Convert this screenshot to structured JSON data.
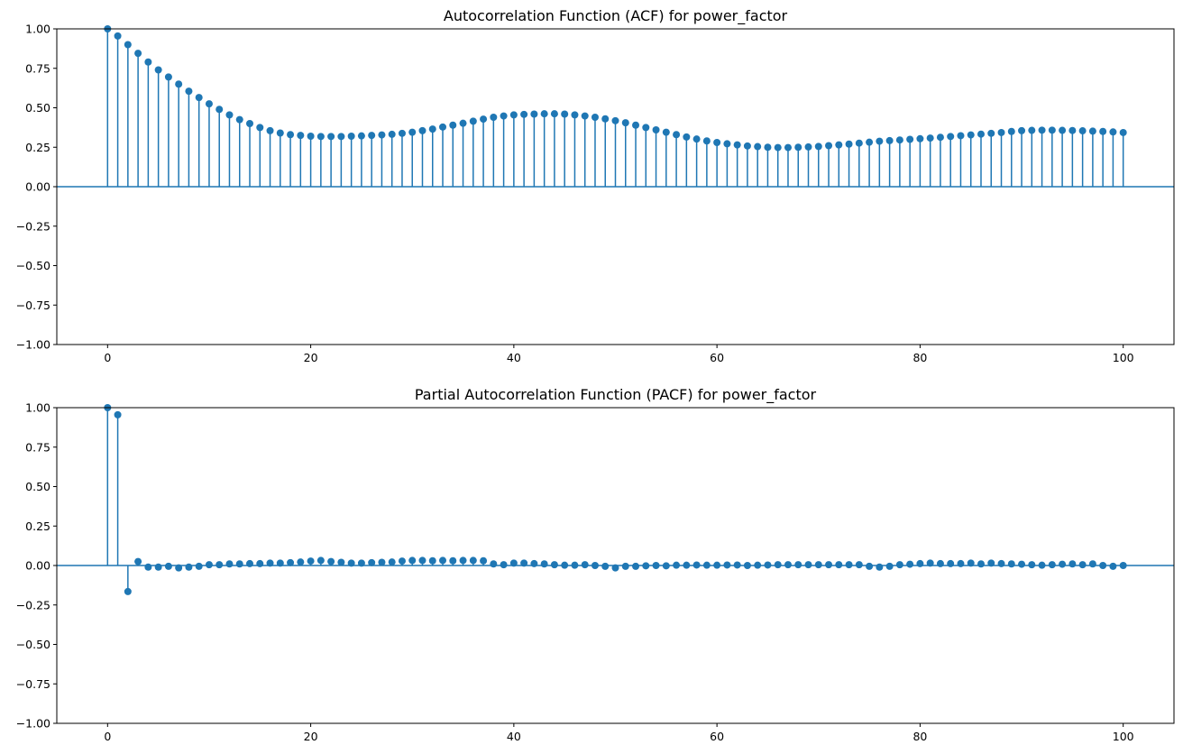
{
  "chart_data": [
    {
      "type": "stem",
      "title": "Autocorrelation Function (ACF) for power_factor",
      "xlabel": "",
      "ylabel": "",
      "xlim": [
        -5,
        105
      ],
      "ylim": [
        -1.0,
        1.0
      ],
      "xticks": [
        0,
        20,
        40,
        60,
        80,
        100
      ],
      "yticks": [
        -1.0,
        -0.75,
        -0.5,
        -0.25,
        0.0,
        0.25,
        0.5,
        0.75,
        1.0
      ],
      "xtick_labels": [
        "0",
        "20",
        "40",
        "60",
        "80",
        "100"
      ],
      "ytick_labels": [
        "−1.00",
        "−0.75",
        "−0.50",
        "−0.25",
        "0.00",
        "0.25",
        "0.50",
        "0.75",
        "1.00"
      ],
      "grid": false,
      "lags": [
        0,
        1,
        2,
        3,
        4,
        5,
        6,
        7,
        8,
        9,
        10,
        11,
        12,
        13,
        14,
        15,
        16,
        17,
        18,
        19,
        20,
        21,
        22,
        23,
        24,
        25,
        26,
        27,
        28,
        29,
        30,
        31,
        32,
        33,
        34,
        35,
        36,
        37,
        38,
        39,
        40,
        41,
        42,
        43,
        44,
        45,
        46,
        47,
        48,
        49,
        50,
        51,
        52,
        53,
        54,
        55,
        56,
        57,
        58,
        59,
        60,
        61,
        62,
        63,
        64,
        65,
        66,
        67,
        68,
        69,
        70,
        71,
        72,
        73,
        74,
        75,
        76,
        77,
        78,
        79,
        80,
        81,
        82,
        83,
        84,
        85,
        86,
        87,
        88,
        89,
        90,
        91,
        92,
        93,
        94,
        95,
        96,
        97,
        98,
        99,
        100
      ],
      "values": [
        1.0,
        0.955,
        0.9,
        0.845,
        0.79,
        0.74,
        0.695,
        0.65,
        0.605,
        0.565,
        0.525,
        0.49,
        0.455,
        0.425,
        0.4,
        0.375,
        0.355,
        0.34,
        0.33,
        0.325,
        0.32,
        0.318,
        0.318,
        0.318,
        0.32,
        0.322,
        0.325,
        0.328,
        0.332,
        0.338,
        0.345,
        0.355,
        0.365,
        0.378,
        0.39,
        0.402,
        0.415,
        0.428,
        0.44,
        0.448,
        0.455,
        0.458,
        0.46,
        0.462,
        0.462,
        0.46,
        0.455,
        0.448,
        0.44,
        0.43,
        0.418,
        0.405,
        0.39,
        0.375,
        0.36,
        0.345,
        0.33,
        0.315,
        0.302,
        0.29,
        0.28,
        0.272,
        0.265,
        0.258,
        0.254,
        0.25,
        0.248,
        0.248,
        0.25,
        0.252,
        0.255,
        0.26,
        0.265,
        0.27,
        0.276,
        0.282,
        0.288,
        0.292,
        0.296,
        0.3,
        0.304,
        0.308,
        0.313,
        0.318,
        0.323,
        0.328,
        0.333,
        0.338,
        0.343,
        0.35,
        0.355,
        0.357,
        0.358,
        0.358,
        0.357,
        0.356,
        0.354,
        0.352,
        0.35,
        0.347,
        0.343
      ]
    },
    {
      "type": "stem",
      "title": "Partial Autocorrelation Function (PACF) for power_factor",
      "xlabel": "",
      "ylabel": "",
      "xlim": [
        -5,
        105
      ],
      "ylim": [
        -1.0,
        1.0
      ],
      "xticks": [
        0,
        20,
        40,
        60,
        80,
        100
      ],
      "yticks": [
        -1.0,
        -0.75,
        -0.5,
        -0.25,
        0.0,
        0.25,
        0.5,
        0.75,
        1.0
      ],
      "xtick_labels": [
        "0",
        "20",
        "40",
        "60",
        "80",
        "100"
      ],
      "ytick_labels": [
        "−1.00",
        "−0.75",
        "−0.50",
        "−0.25",
        "0.00",
        "0.25",
        "0.50",
        "0.75",
        "1.00"
      ],
      "grid": false,
      "lags": [
        0,
        1,
        2,
        3,
        4,
        5,
        6,
        7,
        8,
        9,
        10,
        11,
        12,
        13,
        14,
        15,
        16,
        17,
        18,
        19,
        20,
        21,
        22,
        23,
        24,
        25,
        26,
        27,
        28,
        29,
        30,
        31,
        32,
        33,
        34,
        35,
        36,
        37,
        38,
        39,
        40,
        41,
        42,
        43,
        44,
        45,
        46,
        47,
        48,
        49,
        50,
        51,
        52,
        53,
        54,
        55,
        56,
        57,
        58,
        59,
        60,
        61,
        62,
        63,
        64,
        65,
        66,
        67,
        68,
        69,
        70,
        71,
        72,
        73,
        74,
        75,
        76,
        77,
        78,
        79,
        80,
        81,
        82,
        83,
        84,
        85,
        86,
        87,
        88,
        89,
        90,
        91,
        92,
        93,
        94,
        95,
        96,
        97,
        98,
        99,
        100
      ],
      "values": [
        1.0,
        0.955,
        -0.165,
        0.025,
        -0.01,
        -0.01,
        -0.005,
        -0.015,
        -0.01,
        -0.005,
        0.005,
        0.005,
        0.01,
        0.01,
        0.012,
        0.012,
        0.015,
        0.015,
        0.018,
        0.022,
        0.028,
        0.032,
        0.025,
        0.02,
        0.015,
        0.015,
        0.018,
        0.02,
        0.022,
        0.028,
        0.032,
        0.032,
        0.03,
        0.032,
        0.03,
        0.032,
        0.032,
        0.03,
        0.01,
        0.005,
        0.015,
        0.015,
        0.012,
        0.01,
        0.005,
        0.002,
        0.002,
        0.005,
        0.0,
        -0.005,
        -0.015,
        -0.005,
        -0.005,
        -0.002,
        0.0,
        -0.002,
        0.002,
        0.002,
        0.003,
        0.002,
        0.002,
        0.003,
        0.003,
        0.0,
        0.002,
        0.003,
        0.005,
        0.005,
        0.005,
        0.005,
        0.005,
        0.005,
        0.005,
        0.005,
        0.005,
        -0.005,
        -0.01,
        -0.005,
        0.005,
        0.008,
        0.012,
        0.015,
        0.012,
        0.012,
        0.012,
        0.015,
        0.01,
        0.015,
        0.012,
        0.01,
        0.008,
        0.005,
        0.002,
        0.005,
        0.008,
        0.01,
        0.005,
        0.01,
        0.0,
        -0.005,
        0.0
      ]
    }
  ],
  "colors": {
    "stem": "#1f77b4",
    "baseline": "#1f77b4",
    "axes": "#000000"
  }
}
